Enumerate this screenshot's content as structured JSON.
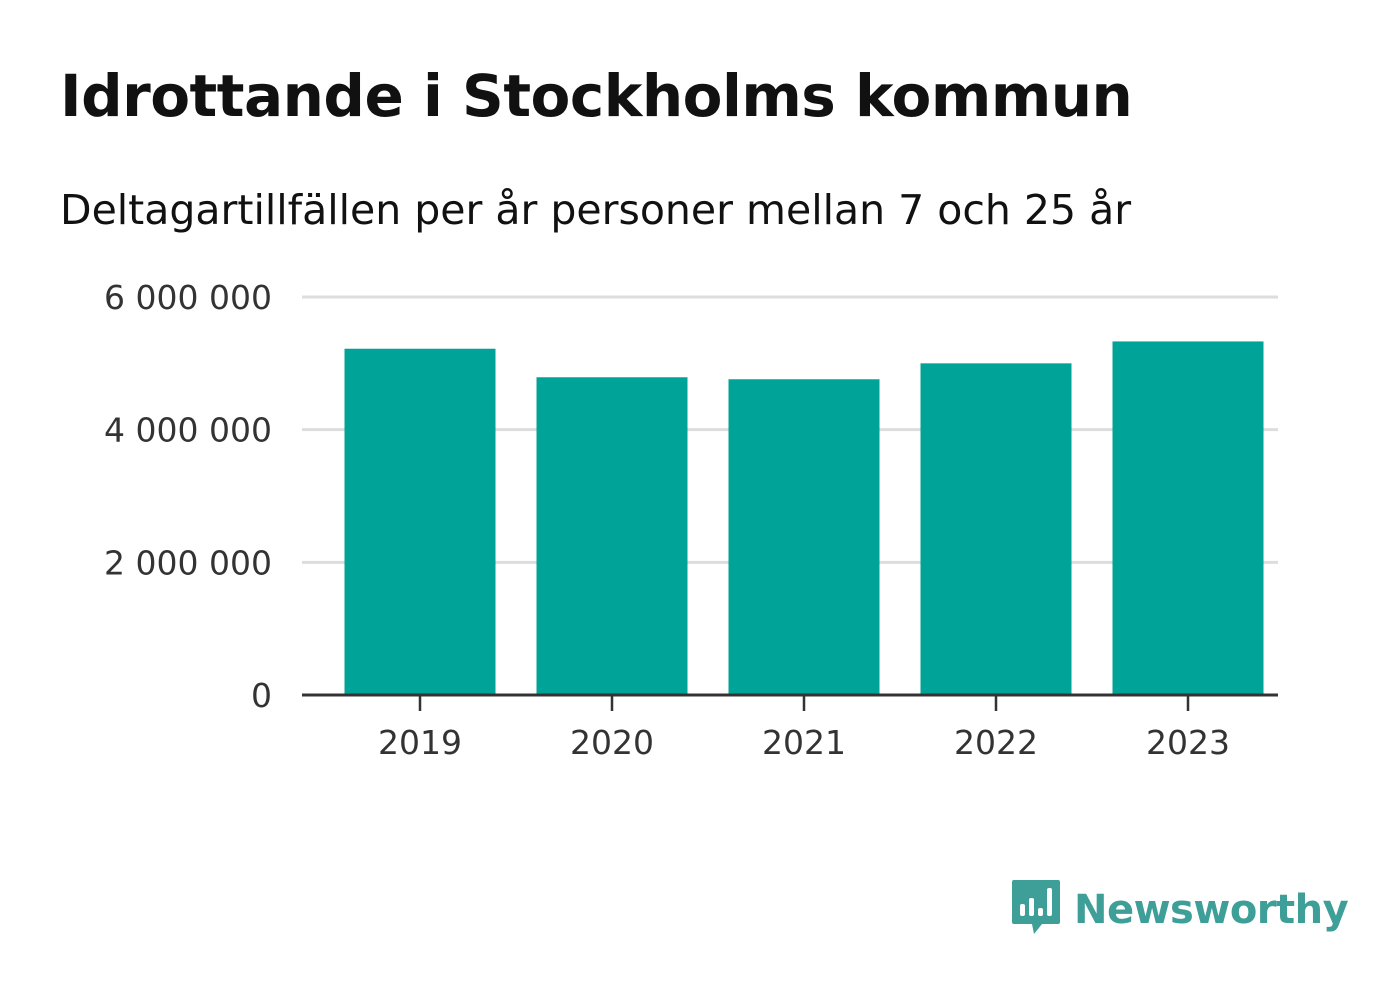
{
  "title": "Idrottande i Stockholms kommun",
  "subtitle": "Deltagartillfällen per år personer mellan 7 och 25 år",
  "brand": {
    "name": "Newsworthy",
    "color": "#3e9e98",
    "icon": "bar-chart-speech-bubble-icon"
  },
  "chart_data": {
    "type": "bar",
    "categories": [
      "2019",
      "2020",
      "2021",
      "2022",
      "2023"
    ],
    "values": [
      5220000,
      4790000,
      4760000,
      5000000,
      5330000
    ],
    "ylim": [
      0,
      6000000
    ],
    "yticks": [
      {
        "value": 0,
        "label": "0"
      },
      {
        "value": 2000000,
        "label": "2 000 000"
      },
      {
        "value": 4000000,
        "label": "4 000 000"
      },
      {
        "value": 6000000,
        "label": "6 000 000"
      }
    ],
    "bar_color": "#00a398",
    "grid": true,
    "legend": "none"
  }
}
